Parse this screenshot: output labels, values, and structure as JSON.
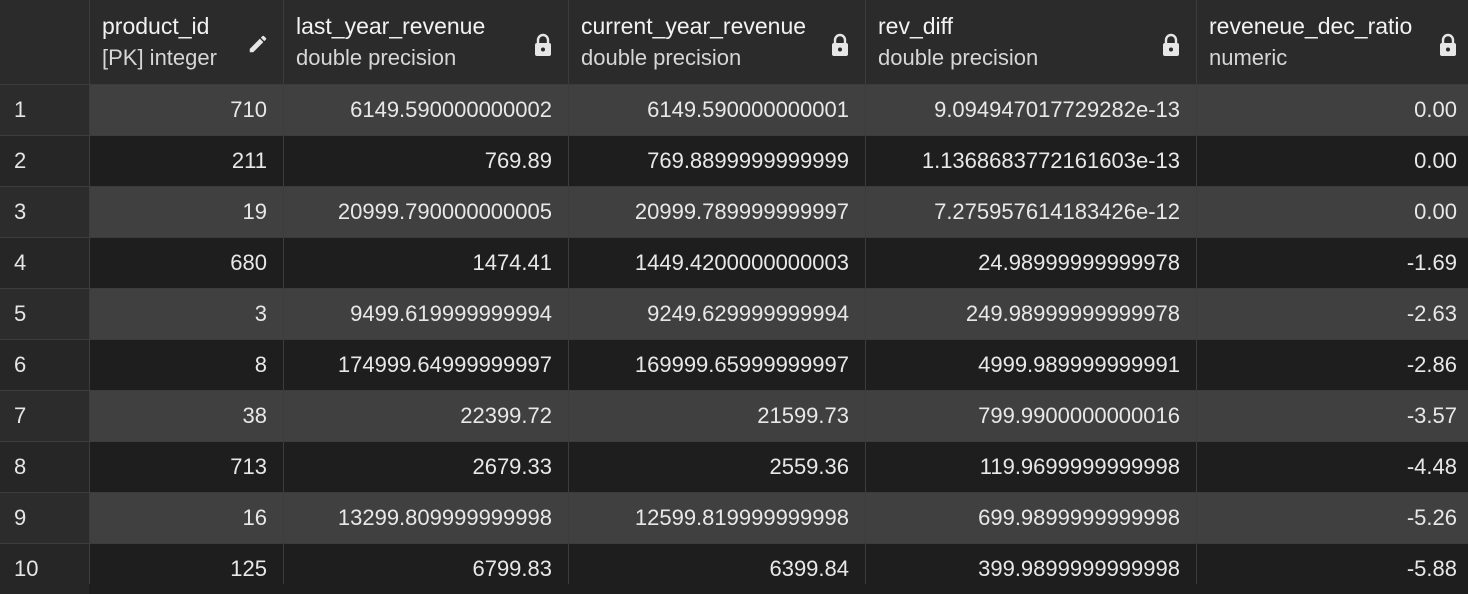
{
  "columns": [
    {
      "name": "product_id",
      "type": "[PK] integer",
      "icon": "pencil-icon"
    },
    {
      "name": "last_year_revenue",
      "type": "double precision",
      "icon": "lock-icon"
    },
    {
      "name": "current_year_revenue",
      "type": "double precision",
      "icon": "lock-icon"
    },
    {
      "name": "rev_diff",
      "type": "double precision",
      "icon": "lock-icon"
    },
    {
      "name": "reveneue_dec_ratio",
      "type": "numeric",
      "icon": "lock-icon"
    }
  ],
  "rows": [
    {
      "n": "1",
      "cells": [
        "710",
        "6149.590000000002",
        "6149.590000000001",
        "9.094947017729282e-13",
        "0.00"
      ]
    },
    {
      "n": "2",
      "cells": [
        "211",
        "769.89",
        "769.8899999999999",
        "1.1368683772161603e-13",
        "0.00"
      ]
    },
    {
      "n": "3",
      "cells": [
        "19",
        "20999.790000000005",
        "20999.789999999997",
        "7.275957614183426e-12",
        "0.00"
      ]
    },
    {
      "n": "4",
      "cells": [
        "680",
        "1474.41",
        "1449.4200000000003",
        "24.98999999999978",
        "-1.69"
      ]
    },
    {
      "n": "5",
      "cells": [
        "3",
        "9499.619999999994",
        "9249.629999999994",
        "249.98999999999978",
        "-2.63"
      ]
    },
    {
      "n": "6",
      "cells": [
        "8",
        "174999.64999999997",
        "169999.65999999997",
        "4999.989999999991",
        "-2.86"
      ]
    },
    {
      "n": "7",
      "cells": [
        "38",
        "22399.72",
        "21599.73",
        "799.9900000000016",
        "-3.57"
      ]
    },
    {
      "n": "8",
      "cells": [
        "713",
        "2679.33",
        "2559.36",
        "119.9699999999998",
        "-4.48"
      ]
    },
    {
      "n": "9",
      "cells": [
        "16",
        "13299.809999999998",
        "12599.819999999998",
        "699.9899999999998",
        "-5.26"
      ]
    },
    {
      "n": "10",
      "cells": [
        "125",
        "6799.83",
        "6399.84",
        "399.9899999999998",
        "-5.88"
      ]
    }
  ]
}
